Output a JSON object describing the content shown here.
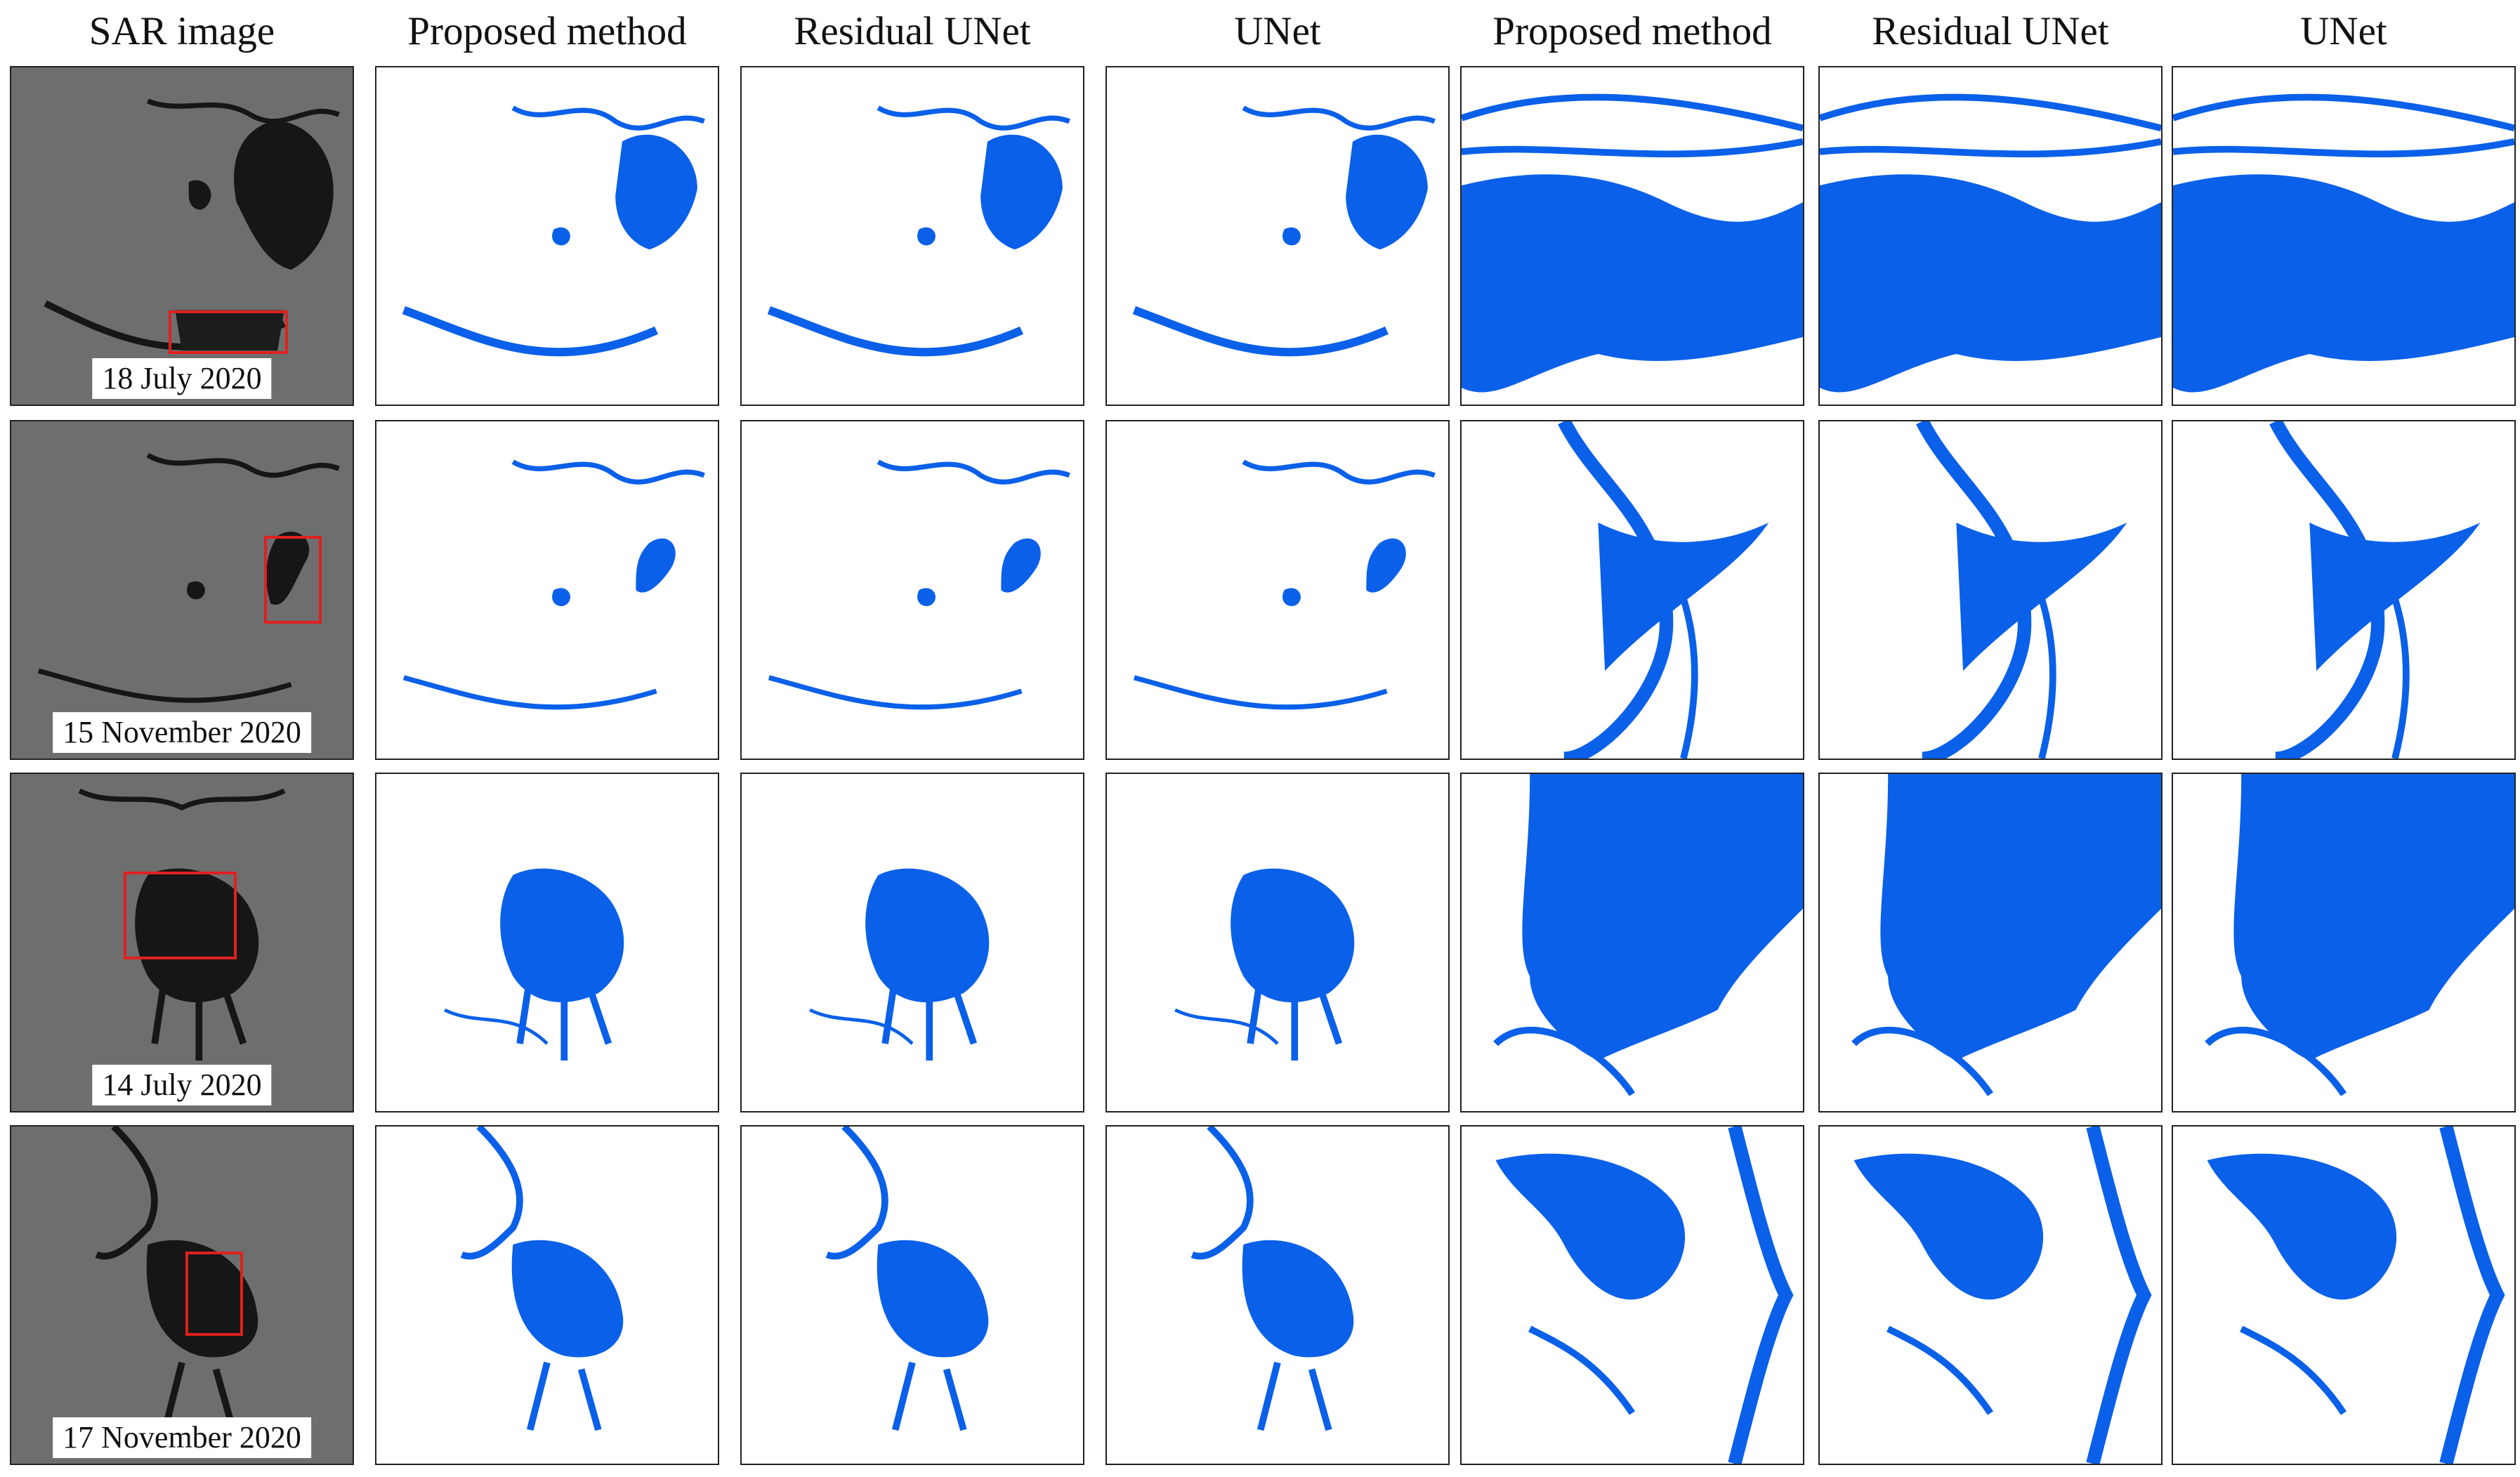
{
  "column_headers": [
    "SAR image",
    "Proposed method",
    "Residual UNet",
    "UNet",
    "Proposed method",
    "Residual UNet",
    "UNet"
  ],
  "rows": [
    {
      "date": "18 July 2020"
    },
    {
      "date": "15 November 2020"
    },
    {
      "date": "14 July 2020"
    },
    {
      "date": "17 November 2020"
    }
  ],
  "colors": {
    "water": "#0a60e8",
    "background": "#ffffff",
    "roi_box": "#e02020",
    "sar_land": "#6e6e6e",
    "sar_water": "#161616"
  }
}
